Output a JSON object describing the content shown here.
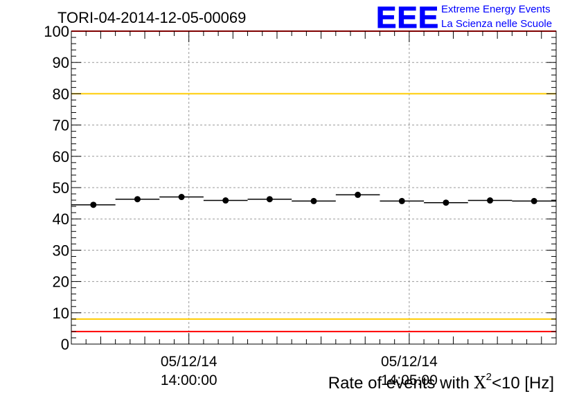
{
  "chart_data": {
    "type": "scatter",
    "title": "TORI-04-2014-12-05-00069",
    "xlabel_prefix": "Rate of events with ",
    "xlabel_symbol": "X",
    "xlabel_power": "2",
    "xlabel_suffix": "<10 [Hz]",
    "ylabel": "",
    "ylim": [
      0,
      100
    ],
    "xlim_min": [
      13,
      57,
      20
    ],
    "xlim_max": [
      14,
      8,
      20
    ],
    "yticks": [
      0,
      10,
      20,
      30,
      40,
      50,
      60,
      70,
      80,
      90,
      100
    ],
    "xticks": [
      {
        "date": "05/12/14",
        "time": "14:00:00",
        "t": [
          14,
          0,
          0
        ]
      },
      {
        "date": "05/12/14",
        "time": "14:05:00",
        "t": [
          14,
          5,
          0
        ]
      }
    ],
    "grid": true,
    "bins": [
      {
        "start": [
          13,
          57,
          20
        ],
        "end": [
          13,
          58,
          20
        ],
        "value": 44.5
      },
      {
        "start": [
          13,
          58,
          20
        ],
        "end": [
          13,
          59,
          20
        ],
        "value": 46.3
      },
      {
        "start": [
          13,
          59,
          20
        ],
        "end": [
          14,
          0,
          20
        ],
        "value": 47.0
      },
      {
        "start": [
          14,
          0,
          20
        ],
        "end": [
          14,
          1,
          20
        ],
        "value": 45.9
      },
      {
        "start": [
          14,
          1,
          20
        ],
        "end": [
          14,
          2,
          20
        ],
        "value": 46.3
      },
      {
        "start": [
          14,
          2,
          20
        ],
        "end": [
          14,
          3,
          20
        ],
        "value": 45.7
      },
      {
        "start": [
          14,
          3,
          20
        ],
        "end": [
          14,
          4,
          20
        ],
        "value": 47.7
      },
      {
        "start": [
          14,
          4,
          20
        ],
        "end": [
          14,
          5,
          20
        ],
        "value": 45.7
      },
      {
        "start": [
          14,
          5,
          20
        ],
        "end": [
          14,
          6,
          20
        ],
        "value": 45.2
      },
      {
        "start": [
          14,
          6,
          20
        ],
        "end": [
          14,
          7,
          20
        ],
        "value": 45.9
      },
      {
        "start": [
          14,
          7,
          20
        ],
        "end": [
          14,
          8,
          20
        ],
        "value": 45.7
      }
    ],
    "reference_lines": [
      {
        "value": 100,
        "color": "#ff0000"
      },
      {
        "value": 80,
        "color": "#ffcc00"
      },
      {
        "value": 8,
        "color": "#ffcc00"
      },
      {
        "value": 4,
        "color": "#ff0000"
      }
    ],
    "marker_color": "#000000"
  },
  "logo": {
    "mark": "EEE",
    "line1": "Extreme Energy Events",
    "line2": "La Scienza nelle Scuole",
    "color": "#0000ff"
  }
}
